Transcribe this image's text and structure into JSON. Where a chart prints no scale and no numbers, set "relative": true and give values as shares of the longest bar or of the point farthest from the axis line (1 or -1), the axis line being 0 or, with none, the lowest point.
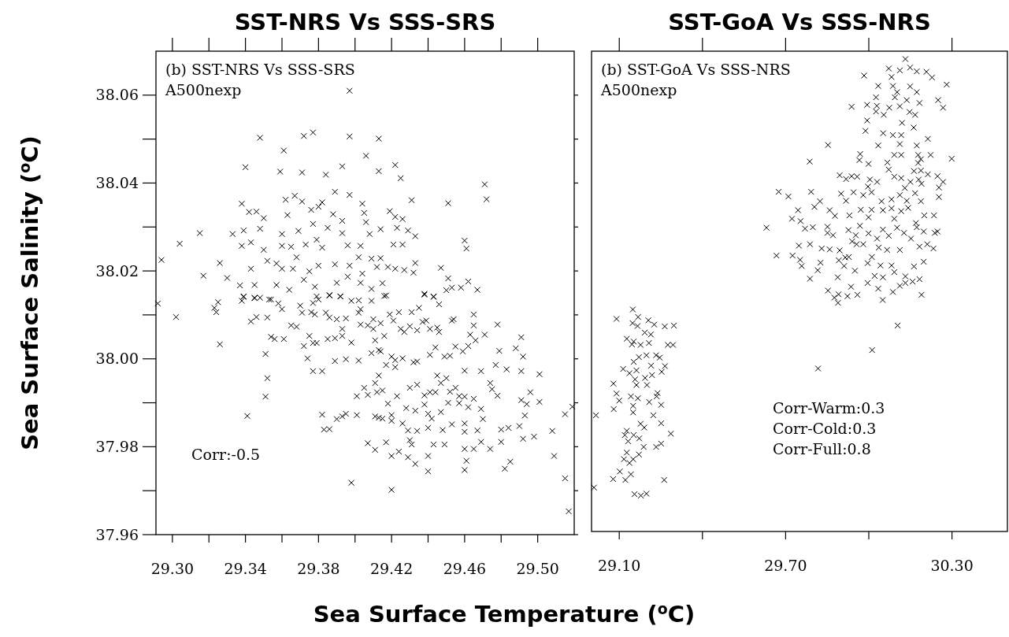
{
  "chart_data": [
    {
      "type": "scatter",
      "title": "SST-NRS Vs SSS-SRS",
      "ylabel": "Sea Surface Salinity ($^{o}$C)",
      "annotations": [
        "(b) SST-NRS Vs SSS-SRS",
        "A500nexp",
        "Corr:-0.5"
      ],
      "color": "#000000",
      "marker": "cross",
      "xlim": [
        29.291,
        29.52
      ],
      "ylim": [
        37.96,
        38.07
      ],
      "xticks": [
        {
          "value": 29.3,
          "label": "29.30"
        },
        {
          "value": 29.32,
          "label": null
        },
        29.34,
        {
          "value": 29.36,
          "label": null
        },
        29.38,
        {
          "value": 29.4,
          "label": null
        },
        29.42,
        {
          "value": 29.44,
          "label": null
        },
        29.46,
        {
          "value": 29.48,
          "label": null
        },
        {
          "value": 29.5,
          "label": "29.50"
        }
      ],
      "yticks": [
        37.96,
        {
          "value": 37.97,
          "label": null
        },
        37.98,
        {
          "value": 37.99,
          "label": null
        },
        {
          "value": 38.0,
          "label": "38.00"
        },
        {
          "value": 38.01,
          "label": null
        },
        38.02,
        {
          "value": 38.03,
          "label": null
        },
        38.04,
        {
          "value": 38.05,
          "label": null
        },
        38.06
      ],
      "x": [
        29.397,
        29.348,
        29.372,
        29.377,
        29.397,
        29.413,
        29.361,
        29.406,
        29.34,
        29.359,
        29.371,
        29.384,
        29.393,
        29.413,
        29.422,
        29.425,
        29.471,
        29.472,
        29.451,
        29.431,
        29.338,
        29.342,
        29.346,
        29.35,
        29.362,
        29.367,
        29.371,
        29.382,
        29.389,
        29.397,
        29.404,
        29.38,
        29.376,
        29.363,
        29.393,
        29.388,
        29.405,
        29.406,
        29.419,
        29.422,
        29.426,
        29.339,
        29.348,
        29.315,
        29.304,
        29.333,
        29.36,
        29.369,
        29.377,
        29.385,
        29.393,
        29.408,
        29.414,
        29.423,
        29.429,
        29.433,
        29.46,
        29.461,
        29.338,
        29.343,
        29.35,
        29.36,
        29.365,
        29.373,
        29.379,
        29.382,
        29.396,
        29.403,
        29.421,
        29.426,
        29.294,
        29.326,
        29.317,
        29.33,
        29.343,
        29.352,
        29.357,
        29.368,
        29.36,
        29.366,
        29.375,
        29.38,
        29.389,
        29.397,
        29.402,
        29.409,
        29.414,
        29.412,
        29.418,
        29.422,
        29.427,
        29.432,
        29.433,
        29.447,
        29.451,
        29.372,
        29.404,
        29.337,
        29.345,
        29.357,
        29.364,
        29.378,
        29.39,
        29.396,
        29.403,
        29.409,
        29.415,
        29.453,
        29.458,
        29.462,
        29.467,
        29.438,
        29.443,
        29.45,
        29.416,
        29.386,
        29.339,
        29.345,
        29.353,
        29.392,
        29.379,
        29.292,
        29.302,
        29.323,
        29.325,
        29.324,
        29.326,
        29.338,
        29.339,
        29.343,
        29.346,
        29.352,
        29.345,
        29.348,
        29.354,
        29.358,
        29.36,
        29.351,
        29.352,
        29.351,
        29.341,
        29.354,
        29.356,
        29.361,
        29.365,
        29.368,
        29.371,
        29.376,
        29.378,
        29.37,
        29.377,
        29.38,
        29.386,
        29.392,
        29.398,
        29.402,
        29.409,
        29.417,
        29.384,
        29.386,
        29.39,
        29.395,
        29.402,
        29.403,
        29.438,
        29.443,
        29.446,
        29.375,
        29.372,
        29.377,
        29.379,
        29.385,
        29.389,
        29.393,
        29.393,
        29.398,
        29.374,
        29.377,
        29.382,
        29.389,
        29.395,
        29.402,
        29.403,
        29.407,
        29.41,
        29.414,
        29.41,
        29.416,
        29.419,
        29.421,
        29.424,
        29.425,
        29.427,
        29.43,
        29.431,
        29.435,
        29.434,
        29.437,
        29.439,
        29.441,
        29.445,
        29.446,
        29.453,
        29.454,
        29.465,
        29.465,
        29.463,
        29.471,
        29.466,
        29.478,
        29.491,
        29.492,
        29.479,
        29.488,
        29.459,
        29.462,
        29.455,
        29.444,
        29.441,
        29.449,
        29.452,
        29.409,
        29.413,
        29.414,
        29.411,
        29.42,
        29.422,
        29.426,
        29.417,
        29.422,
        29.432,
        29.434,
        29.46,
        29.469,
        29.477,
        29.483,
        29.491,
        29.501,
        29.413,
        29.411,
        29.405,
        29.407,
        29.412,
        29.415,
        29.401,
        29.423,
        29.43,
        29.434,
        29.438,
        29.441,
        29.444,
        29.445,
        29.447,
        29.45,
        29.452,
        29.455,
        29.457,
        29.46,
        29.465,
        29.474,
        29.475,
        29.478,
        29.496,
        29.491,
        29.494,
        29.501,
        29.515,
        29.519,
        29.418,
        29.42,
        29.42,
        29.438,
        29.44,
        29.442,
        29.433,
        29.428,
        29.447,
        29.451,
        29.457,
        29.462,
        29.469,
        29.47,
        29.382,
        29.39,
        29.393,
        29.395,
        29.401,
        29.411,
        29.413,
        29.415,
        29.383,
        29.386,
        29.426,
        29.429,
        29.434,
        29.44,
        29.448,
        29.453,
        29.46,
        29.46,
        29.467,
        29.48,
        29.484,
        29.49,
        29.493,
        29.492,
        29.498,
        29.508,
        29.469,
        29.48,
        29.474,
        29.407,
        29.411,
        29.417,
        29.43,
        29.431,
        29.443,
        29.449,
        29.46,
        29.465,
        29.42,
        29.424,
        29.429,
        29.433,
        29.44,
        29.44,
        29.461,
        29.46,
        29.482,
        29.485,
        29.509,
        29.398,
        29.42,
        29.515,
        29.517
      ],
      "values": [
        38.061,
        38.0503,
        38.0507,
        38.0515,
        38.0506,
        38.0501,
        38.0474,
        38.0462,
        38.0436,
        38.0426,
        38.0424,
        38.0419,
        38.0438,
        38.0427,
        38.0441,
        38.0411,
        38.0397,
        38.0363,
        38.0354,
        38.0361,
        38.0353,
        38.0334,
        38.0335,
        38.032,
        38.0362,
        38.0371,
        38.0358,
        38.0356,
        38.038,
        38.0373,
        38.0353,
        38.0346,
        38.0339,
        38.0327,
        38.0314,
        38.0329,
        38.0332,
        38.0311,
        38.0336,
        38.0323,
        38.0318,
        38.0292,
        38.0296,
        38.0286,
        38.0262,
        38.0284,
        38.0284,
        38.0291,
        38.0307,
        38.0298,
        38.0286,
        38.0284,
        38.0295,
        38.0298,
        38.0292,
        38.0279,
        38.0269,
        38.0251,
        38.0257,
        38.0265,
        38.0248,
        38.0257,
        38.0255,
        38.026,
        38.0271,
        38.0253,
        38.0258,
        38.0257,
        38.026,
        38.026,
        38.0225,
        38.0218,
        38.0189,
        38.0184,
        38.0205,
        38.0223,
        38.0217,
        38.0231,
        38.0205,
        38.0205,
        38.0199,
        38.0212,
        38.0215,
        38.0212,
        38.0231,
        38.0228,
        38.0229,
        38.0209,
        38.0209,
        38.0205,
        38.0202,
        38.0196,
        38.0218,
        38.0207,
        38.0183,
        38.018,
        38.0194,
        38.0167,
        38.0168,
        38.0168,
        38.0157,
        38.0164,
        38.0173,
        38.0187,
        38.0173,
        38.0159,
        38.0172,
        38.0162,
        38.0162,
        38.0176,
        38.0157,
        38.0148,
        38.0141,
        38.0156,
        38.0143,
        38.0144,
        38.0141,
        38.0138,
        38.0135,
        38.0142,
        38.0142,
        38.0126,
        38.0095,
        38.0116,
        38.0129,
        38.0106,
        38.0033,
        38.0132,
        38.0142,
        38.0085,
        38.0095,
        38.0094,
        38.0139,
        38.0139,
        38.0135,
        38.0126,
        38.0113,
        38.0011,
        37.9956,
        37.9914,
        37.987,
        38.005,
        38.0045,
        38.0045,
        38.0076,
        38.0073,
        38.0105,
        38.0106,
        38.0101,
        38.0121,
        38.0127,
        38.0135,
        38.0145,
        38.0142,
        38.0132,
        38.0133,
        38.0132,
        38.0144,
        38.0105,
        38.0094,
        38.009,
        38.0092,
        38.0105,
        38.0113,
        38.0146,
        38.0142,
        38.0124,
        38.0052,
        38.0029,
        38.0036,
        38.0036,
        38.0045,
        38.0047,
        38.0068,
        38.0052,
        38.0037,
        38.0001,
        37.9972,
        37.9972,
        37.9995,
        37.9999,
        37.9996,
        38.0078,
        38.0076,
        38.009,
        38.0081,
        38.0068,
        38.0052,
        38.0101,
        38.0087,
        38.0106,
        38.0068,
        38.0061,
        38.0074,
        38.0106,
        38.0116,
        38.0065,
        38.0084,
        38.0087,
        38.0068,
        38.0071,
        38.0061,
        38.0087,
        38.009,
        38.0101,
        38.0076,
        38.0055,
        38.0055,
        38.0042,
        38.0078,
        38.0049,
        38.0005,
        38.0018,
        38.0024,
        38.0017,
        38.0029,
        38.0028,
        38.0026,
        38.0009,
        38.0005,
        38.0007,
        38.0013,
        38.002,
        38.0017,
        38.0042,
        38.0005,
        37.9997,
        38.0001,
        37.9986,
        37.9981,
        37.9992,
        37.9994,
        37.9973,
        37.9972,
        37.9986,
        37.9976,
        37.9972,
        37.9965,
        37.9962,
        37.9945,
        37.9934,
        37.9918,
        37.9924,
        37.9928,
        37.9915,
        37.9915,
        37.9934,
        37.9941,
        37.9917,
        37.9924,
        37.9924,
        37.9962,
        37.9945,
        37.9956,
        37.9925,
        37.9934,
        37.9915,
        37.9914,
        37.9909,
        37.9945,
        37.9931,
        37.9916,
        37.9924,
        37.9906,
        37.9897,
        37.9902,
        37.9874,
        37.9891,
        37.9898,
        37.9872,
        37.9859,
        37.9896,
        37.9875,
        37.9864,
        37.9882,
        37.9888,
        37.9879,
        37.99,
        37.9899,
        37.989,
        37.9886,
        37.9863,
        37.9873,
        37.9863,
        37.9869,
        37.9875,
        37.9872,
        37.9869,
        37.9866,
        37.9864,
        37.9839,
        37.984,
        37.9853,
        37.9837,
        37.9836,
        37.9843,
        37.9838,
        37.9851,
        37.9853,
        37.9834,
        37.9837,
        37.9839,
        37.9843,
        37.9847,
        37.9871,
        37.9818,
        37.9823,
        37.9836,
        37.9811,
        37.9811,
        37.9795,
        37.9808,
        37.9793,
        37.981,
        37.9815,
        37.9805,
        37.9805,
        37.9805,
        37.9795,
        37.9795,
        37.9779,
        37.9789,
        37.9776,
        37.9761,
        37.9779,
        37.9744,
        37.9768,
        37.9747,
        37.975,
        37.9766,
        37.9779,
        37.9718,
        37.9702,
        37.9728,
        37.9653
      ]
    },
    {
      "type": "scatter",
      "title": "SST-GoA Vs SSS-NRS",
      "xlabel": "Sea Surface Temperature ($^{o}$C)",
      "annotations": [
        "(b) SST-GoA Vs SSS-NRS",
        "A500nexp",
        "Corr-Warm:0.3",
        "Corr-Cold:0.3",
        "Corr-Full:0.8"
      ],
      "color": "#000000",
      "marker": "cross",
      "relative": true,
      "xlim": [
        29.0,
        30.5
      ],
      "xticks": [
        {
          "value": 29.1,
          "label": "29.10"
        },
        {
          "value": 29.4,
          "label": null
        },
        {
          "value": 29.7,
          "label": "29.70"
        },
        {
          "value": 30.0,
          "label": null
        },
        {
          "value": 30.3,
          "label": "30.30"
        }
      ],
      "x": [
        30.132,
        30.072,
        30.112,
        30.149,
        30.173,
        30.208,
        30.228,
        29.983,
        30.082,
        30.281,
        30.034,
        30.087,
        30.149,
        30.173,
        30.102,
        30.026,
        30.094,
        30.137,
        30.183,
        30.25,
        30.268,
        29.938,
        29.994,
        30.029,
        30.074,
        30.112,
        30.026,
        30.054,
        30.147,
        30.167,
        29.994,
        30.12,
        30.162,
        29.988,
        30.052,
        30.087,
        30.117,
        30.213,
        29.853,
        30.034,
        30.112,
        30.173,
        29.787,
        29.969,
        29.966,
        29.999,
        30.067,
        30.092,
        30.117,
        30.178,
        30.188,
        30.223,
        30.299,
        30.178,
        30.072,
        30.163,
        30.188,
        29.895,
        29.918,
        29.938,
        29.958,
        30.004,
        30.03,
        30.092,
        30.117,
        30.15,
        30.18,
        30.213,
        30.248,
        30.268,
        30.253,
        30.19,
        30.13,
        29.997,
        29.675,
        29.71,
        29.792,
        29.824,
        29.804,
        29.9,
        29.918,
        29.945,
        29.98,
        30.01,
        30.046,
        30.082,
        30.112,
        30.137,
        30.167,
        30.188,
        30.253,
        29.745,
        29.723,
        29.859,
        29.878,
        29.93,
        29.971,
        30.01,
        30.051,
        30.082,
        30.117,
        30.142,
        30.2,
        30.235,
        29.754,
        29.999,
        30.092,
        30.17,
        29.631,
        29.77,
        29.798,
        29.851,
        29.851,
        29.871,
        29.927,
        29.953,
        29.968,
        29.999,
        30.03,
        30.051,
        30.072,
        30.102,
        30.127,
        30.152,
        30.173,
        30.198,
        30.238,
        30.248,
        29.956,
        29.98,
        29.94,
        30.036,
        30.066,
        30.112,
        30.183,
        30.211,
        30.233,
        29.748,
        29.788,
        29.83,
        29.859,
        29.667,
        29.725,
        29.752,
        29.758,
        29.826,
        29.816,
        29.895,
        29.915,
        29.928,
        29.892,
        29.911,
        29.95,
        29.996,
        30.011,
        30.042,
        30.082,
        30.092,
        30.021,
        29.996,
        30.051,
        30.132,
        30.163,
        30.198,
        30.132,
        30.158,
        30.183,
        30.112,
        30.087,
        30.034,
        30.05,
        29.788,
        29.888,
        29.936,
        29.853,
        29.891,
        29.876,
        29.889,
        29.923,
        29.959,
        30.19,
        30.104,
        30.012,
        29.817,
        29.149,
        29.09,
        29.168,
        29.148,
        29.166,
        29.205,
        29.226,
        29.264,
        29.297,
        29.192,
        29.214,
        29.127,
        29.152,
        29.177,
        29.207,
        29.146,
        29.275,
        29.294,
        29.171,
        29.198,
        29.233,
        29.246,
        29.152,
        29.215,
        29.265,
        29.114,
        29.137,
        29.162,
        29.193,
        29.218,
        29.253,
        29.079,
        29.157,
        29.162,
        29.2,
        29.09,
        29.142,
        29.167,
        29.1,
        29.208,
        29.235,
        29.238,
        29.251,
        29.08,
        29.15,
        29.15,
        29.016,
        29.223,
        29.177,
        29.19,
        29.251,
        29.286,
        29.127,
        29.12,
        29.152,
        29.172,
        29.132,
        29.188,
        29.233,
        29.251,
        29.127,
        29.117,
        29.15,
        29.171,
        29.137,
        29.102,
        29.142,
        29.078,
        29.122,
        29.262,
        29.009,
        29.155,
        29.178,
        29.198
      ],
      "values": [
        1.0,
        0.98,
        0.976,
        0.982,
        0.974,
        0.973,
        0.961,
        0.965,
        0.962,
        0.946,
        0.943,
        0.943,
        0.942,
        0.93,
        0.93,
        0.919,
        0.919,
        0.913,
        0.907,
        0.913,
        0.897,
        0.899,
        0.903,
        0.901,
        0.897,
        0.9,
        0.889,
        0.882,
        0.888,
        0.882,
        0.87,
        0.865,
        0.855,
        0.848,
        0.843,
        0.839,
        0.839,
        0.831,
        0.818,
        0.817,
        0.82,
        0.817,
        0.783,
        0.799,
        0.786,
        0.778,
        0.781,
        0.797,
        0.797,
        0.797,
        0.788,
        0.797,
        0.789,
        0.78,
        0.766,
        0.763,
        0.764,
        0.754,
        0.746,
        0.752,
        0.751,
        0.745,
        0.74,
        0.751,
        0.748,
        0.74,
        0.745,
        0.756,
        0.752,
        0.74,
        0.728,
        0.736,
        0.727,
        0.73,
        0.719,
        0.709,
        0.719,
        0.699,
        0.687,
        0.715,
        0.7,
        0.718,
        0.712,
        0.718,
        0.699,
        0.703,
        0.712,
        0.7,
        0.716,
        0.699,
        0.708,
        0.68,
        0.662,
        0.68,
        0.668,
        0.669,
        0.681,
        0.681,
        0.68,
        0.684,
        0.678,
        0.685,
        0.669,
        0.669,
        0.657,
        0.665,
        0.662,
        0.653,
        0.643,
        0.641,
        0.644,
        0.645,
        0.632,
        0.627,
        0.638,
        0.627,
        0.647,
        0.631,
        0.62,
        0.639,
        0.626,
        0.643,
        0.632,
        0.62,
        0.644,
        0.635,
        0.632,
        0.635,
        0.608,
        0.608,
        0.614,
        0.601,
        0.596,
        0.596,
        0.603,
        0.608,
        0.599,
        0.605,
        0.608,
        0.599,
        0.597,
        0.584,
        0.584,
        0.575,
        0.562,
        0.569,
        0.553,
        0.595,
        0.58,
        0.581,
        0.574,
        0.562,
        0.552,
        0.568,
        0.581,
        0.563,
        0.563,
        0.549,
        0.541,
        0.526,
        0.538,
        0.54,
        0.561,
        0.571,
        0.526,
        0.529,
        0.534,
        0.52,
        0.507,
        0.514,
        0.49,
        0.535,
        0.538,
        0.518,
        0.51,
        0.502,
        0.495,
        0.484,
        0.498,
        0.501,
        0.501,
        0.436,
        0.384,
        0.345,
        0.47,
        0.45,
        0.454,
        0.441,
        0.435,
        0.447,
        0.438,
        0.434,
        0.436,
        0.421,
        0.417,
        0.408,
        0.402,
        0.395,
        0.399,
        0.396,
        0.395,
        0.395,
        0.369,
        0.373,
        0.373,
        0.368,
        0.359,
        0.351,
        0.35,
        0.344,
        0.335,
        0.341,
        0.325,
        0.331,
        0.338,
        0.313,
        0.322,
        0.31,
        0.31,
        0.292,
        0.286,
        0.282,
        0.277,
        0.274,
        0.286,
        0.293,
        0.268,
        0.259,
        0.266,
        0.252,
        0.246,
        0.246,
        0.228,
        0.22,
        0.229,
        0.207,
        0.213,
        0.204,
        0.204,
        0.197,
        0.191,
        0.179,
        0.179,
        0.186,
        0.167,
        0.153,
        0.153,
        0.163,
        0.145,
        0.127,
        0.121,
        0.111,
        0.109,
        0.109,
        0.093,
        0.079,
        0.076,
        0.08
      ]
    }
  ]
}
